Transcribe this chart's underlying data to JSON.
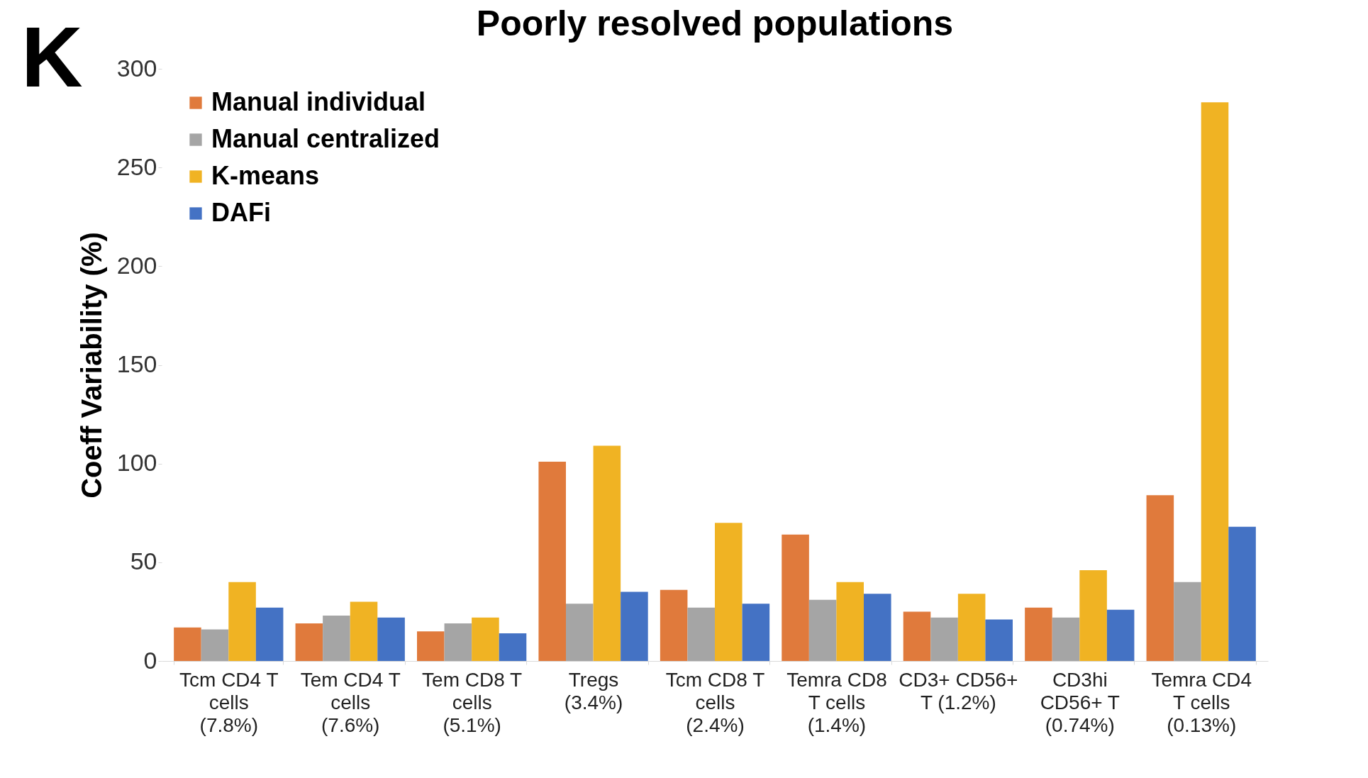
{
  "chart_data": {
    "type": "bar",
    "title": "Poorly resolved populations",
    "ylabel": "Coeff Variability (%)",
    "annotations": [
      "K"
    ],
    "categories": [
      "Tcm CD4 T cells (7.8%)",
      "Tem CD4 T cells (7.6%)",
      "Tem CD8 T cells (5.1%)",
      "Tregs (3.4%)",
      "Tcm CD8 T cells (2.4%)",
      "Temra CD8 T cells (1.4%)",
      "CD3+ CD56+ T (1.2%)",
      "CD3hi CD56+ T (0.74%)",
      "Temra CD4 T cells (0.13%)"
    ],
    "series": [
      {
        "name": "Manual individual",
        "color": "#e07a3c",
        "values": [
          17,
          19,
          15,
          101,
          36,
          64,
          25,
          27,
          84
        ]
      },
      {
        "name": "Manual centralized",
        "color": "#a5a5a5",
        "values": [
          16,
          23,
          19,
          29,
          27,
          31,
          22,
          22,
          40
        ]
      },
      {
        "name": "K-means",
        "color": "#f0b323",
        "values": [
          40,
          30,
          22,
          109,
          70,
          40,
          34,
          46,
          283
        ]
      },
      {
        "name": "DAFi",
        "color": "#4472c4",
        "values": [
          27,
          22,
          14,
          35,
          29,
          34,
          21,
          26,
          68
        ]
      }
    ],
    "ylim": [
      0,
      300
    ],
    "yticks": [
      0,
      50,
      100,
      150,
      200,
      250,
      300
    ],
    "grid": false,
    "legend": "top left"
  }
}
